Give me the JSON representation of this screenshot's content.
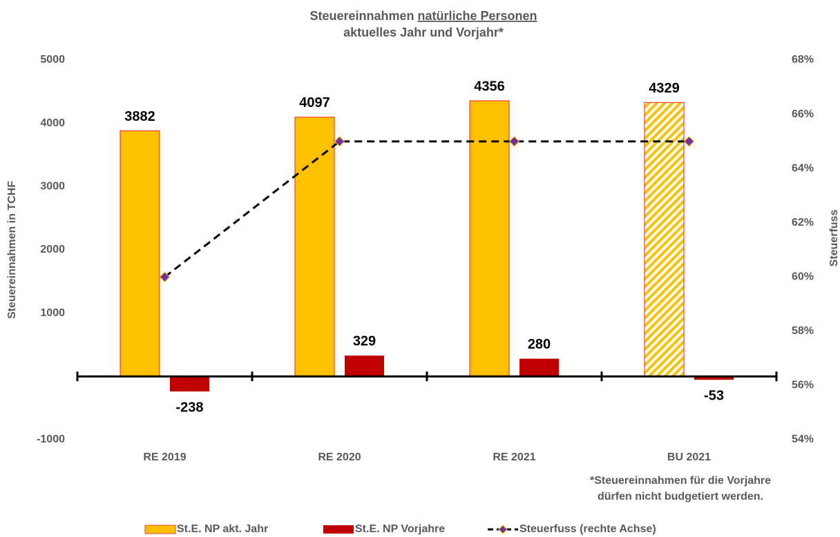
{
  "chart_data": {
    "type": "bar",
    "title": [
      "Steuereinnahmen",
      "natürliche Personen"
    ],
    "subtitle": "aktuelles Jahr und Vorjahr*",
    "ylabel": "Steuereinnahmen in TCHF",
    "y2label": "Steuerfuss",
    "footnote": [
      "*Steuereinnahmen für die Vorjahre",
      "dürfen nicht budgetiert werden."
    ],
    "categories": [
      "RE 2019",
      "RE 2020",
      "RE 2021",
      "BU 2021"
    ],
    "ylim": [
      -1000,
      5000
    ],
    "yticks": [
      -1000,
      1000,
      2000,
      3000,
      4000,
      5000
    ],
    "y2lim": [
      54,
      68
    ],
    "y2ticks": [
      {
        "value": 54,
        "label": "54%"
      },
      {
        "value": 56,
        "label": "56%"
      },
      {
        "value": 58,
        "label": "58%"
      },
      {
        "value": 60,
        "label": "60%"
      },
      {
        "value": 62,
        "label": "62%"
      },
      {
        "value": 64,
        "label": "64%"
      },
      {
        "value": 66,
        "label": "66%"
      },
      {
        "value": 68,
        "label": "68%"
      }
    ],
    "series": [
      {
        "name": "St.E. NP akt. Jahr",
        "type": "bar",
        "color": "#ffc000",
        "edge": "#e8413a",
        "hatch": [
          false,
          false,
          false,
          true
        ],
        "values": [
          3882,
          4097,
          4356,
          4329
        ]
      },
      {
        "name": "St.E. NP Vorjahre",
        "type": "bar",
        "color": "#c00000",
        "values": [
          -238,
          329,
          280,
          -53
        ]
      },
      {
        "name": "Steuerfuss (rechte Achse)",
        "type": "line",
        "axis": "y2",
        "color": "#000000",
        "marker_color": "#7030a0",
        "marker_edge": "#ffc000",
        "values": [
          60,
          65,
          65,
          65
        ]
      }
    ]
  }
}
